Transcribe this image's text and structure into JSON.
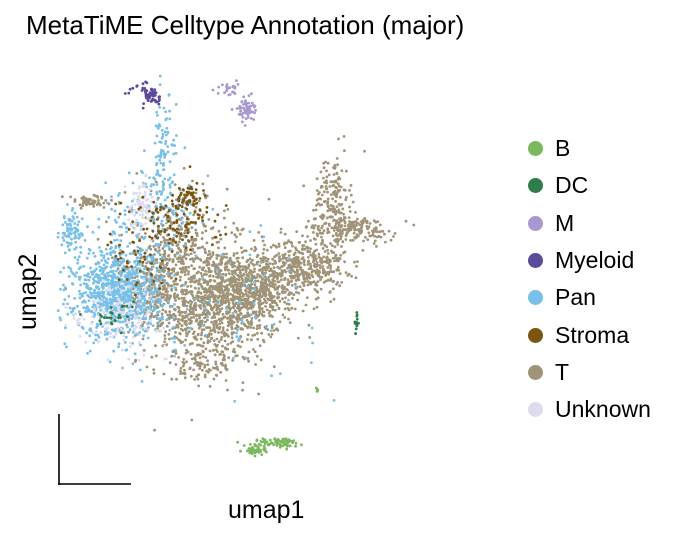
{
  "chart_data": {
    "type": "scatter",
    "title": "MetaTiME Celltype Annotation (major)",
    "xlabel": "umap1",
    "ylabel": "umap2",
    "xlim": [
      0,
      16
    ],
    "ylim": [
      0,
      12
    ],
    "grid": false,
    "legend_position": "right",
    "series": [
      {
        "name": "B",
        "color": "#7cb85f",
        "clusters": [
          {
            "cx": 7.6,
            "cy": 0.55,
            "sx": 0.22,
            "sy": 0.1,
            "n": 50
          },
          {
            "cx": 8.6,
            "cy": 0.75,
            "sx": 0.4,
            "sy": 0.08,
            "n": 70
          },
          {
            "cx": 10.0,
            "cy": 2.3,
            "sx": 0.02,
            "sy": 0.05,
            "n": 5
          }
        ]
      },
      {
        "name": "DC",
        "color": "#2e7d4a",
        "clusters": [
          {
            "cx": 11.55,
            "cy": 4.35,
            "sx": 0.05,
            "sy": 0.18,
            "n": 14
          },
          {
            "cx": 2.0,
            "cy": 4.5,
            "sx": 0.4,
            "sy": 0.2,
            "n": 25
          }
        ]
      },
      {
        "name": "M",
        "color": "#a898d0",
        "clusters": [
          {
            "cx": 7.2,
            "cy": 10.65,
            "sx": 0.17,
            "sy": 0.17,
            "n": 60
          },
          {
            "cx": 6.5,
            "cy": 11.25,
            "sx": 0.2,
            "sy": 0.1,
            "n": 25
          }
        ]
      },
      {
        "name": "Myeloid",
        "color": "#5c4a9a",
        "clusters": [
          {
            "cx": 3.55,
            "cy": 11.05,
            "sx": 0.15,
            "sy": 0.18,
            "n": 50
          },
          {
            "cx": 3.0,
            "cy": 11.3,
            "sx": 0.25,
            "sy": 0.1,
            "n": 10
          }
        ]
      },
      {
        "name": "Pan",
        "color": "#78c0e8",
        "clusters": [
          {
            "cx": 2.2,
            "cy": 5.2,
            "sx": 0.85,
            "sy": 0.65,
            "n": 900
          },
          {
            "cx": 0.35,
            "cy": 7.0,
            "sx": 0.22,
            "sy": 0.3,
            "n": 80
          },
          {
            "cx": 4.0,
            "cy": 9.2,
            "sx": 0.25,
            "sy": 0.9,
            "n": 100
          },
          {
            "cx": 3.5,
            "cy": 7.3,
            "sx": 1.0,
            "sy": 0.8,
            "n": 150
          },
          {
            "cx": 6.0,
            "cy": 5.0,
            "sx": 2.0,
            "sy": 1.2,
            "n": 80
          }
        ]
      },
      {
        "name": "Stroma",
        "color": "#7a5512",
        "clusters": [
          {
            "cx": 5.0,
            "cy": 8.05,
            "sx": 0.25,
            "sy": 0.17,
            "n": 40
          },
          {
            "cx": 4.3,
            "cy": 7.3,
            "sx": 1.0,
            "sy": 0.5,
            "n": 120
          },
          {
            "cx": 3.0,
            "cy": 6.0,
            "sx": 0.7,
            "sy": 0.5,
            "n": 40
          }
        ]
      },
      {
        "name": "T",
        "color": "#a09478",
        "clusters": [
          {
            "cx": 5.8,
            "cy": 4.9,
            "sx": 1.4,
            "sy": 0.9,
            "n": 1100
          },
          {
            "cx": 7.4,
            "cy": 5.3,
            "sx": 0.9,
            "sy": 0.5,
            "n": 500
          },
          {
            "cx": 9.5,
            "cy": 6.0,
            "sx": 0.8,
            "sy": 0.4,
            "n": 400
          },
          {
            "cx": 11.3,
            "cy": 7.1,
            "sx": 0.9,
            "sy": 0.2,
            "n": 200
          },
          {
            "cx": 10.6,
            "cy": 8.1,
            "sx": 0.35,
            "sy": 0.6,
            "n": 150
          },
          {
            "cx": 1.1,
            "cy": 7.9,
            "sx": 0.5,
            "sy": 0.1,
            "n": 60
          },
          {
            "cx": 4.5,
            "cy": 6.6,
            "sx": 1.0,
            "sy": 0.9,
            "n": 300
          },
          {
            "cx": 3.5,
            "cy": 5.3,
            "sx": 0.6,
            "sy": 0.5,
            "n": 150
          },
          {
            "cx": 5.5,
            "cy": 3.0,
            "sx": 0.6,
            "sy": 0.2,
            "n": 80
          }
        ]
      },
      {
        "name": "Unknown",
        "color": "#dcdcee",
        "clusters": [
          {
            "cx": 3.1,
            "cy": 7.8,
            "sx": 0.25,
            "sy": 0.35,
            "n": 80
          },
          {
            "cx": 2.5,
            "cy": 4.6,
            "sx": 0.8,
            "sy": 0.5,
            "n": 150
          },
          {
            "cx": 0.6,
            "cy": 4.4,
            "sx": 0.15,
            "sy": 0.1,
            "n": 8
          }
        ]
      }
    ]
  }
}
